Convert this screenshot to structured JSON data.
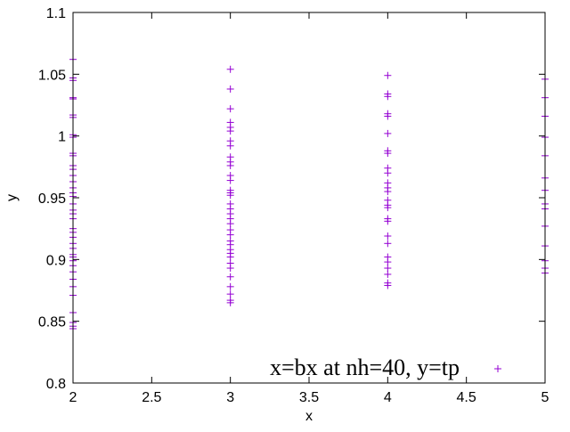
{
  "chart_data": {
    "type": "scatter",
    "title": "",
    "xlabel": "x",
    "ylabel": "y",
    "xlim": [
      2,
      5
    ],
    "ylim": [
      0.8,
      1.1
    ],
    "xticks": [
      2,
      2.5,
      3,
      3.5,
      4,
      4.5,
      5
    ],
    "xtick_labels": [
      "2",
      "2.5",
      "3",
      "3.5",
      "4",
      "4.5",
      "5"
    ],
    "yticks": [
      0.8,
      0.85,
      0.9,
      0.95,
      1,
      1.05,
      1.1
    ],
    "ytick_labels": [
      "0.8",
      "0.85",
      "0.9",
      "0.95",
      "1",
      "1.05",
      "1.1"
    ],
    "grid": false,
    "legend_position": "bottom-right",
    "marker": "plus",
    "color": "#9400d3",
    "series": [
      {
        "name": "x=bx at nh=40, y=tp",
        "points": [
          [
            2,
            1.062
          ],
          [
            2,
            1.047
          ],
          [
            2,
            1.045
          ],
          [
            2,
            1.031
          ],
          [
            2,
            1.03
          ],
          [
            2,
            1.017
          ],
          [
            2,
            1.015
          ],
          [
            2,
            1.001
          ],
          [
            2,
            0.999
          ],
          [
            2,
            0.986
          ],
          [
            2,
            0.984
          ],
          [
            2,
            0.976
          ],
          [
            2,
            0.973
          ],
          [
            2,
            0.968
          ],
          [
            2,
            0.963
          ],
          [
            2,
            0.958
          ],
          [
            2,
            0.954
          ],
          [
            2,
            0.951
          ],
          [
            2,
            0.945
          ],
          [
            2,
            0.94
          ],
          [
            2,
            0.937
          ],
          [
            2,
            0.933
          ],
          [
            2,
            0.925
          ],
          [
            2,
            0.922
          ],
          [
            2,
            0.918
          ],
          [
            2,
            0.913
          ],
          [
            2,
            0.909
          ],
          [
            2,
            0.904
          ],
          [
            2,
            0.902
          ],
          [
            2,
            0.899
          ],
          [
            2,
            0.895
          ],
          [
            2,
            0.89
          ],
          [
            2,
            0.884
          ],
          [
            2,
            0.878
          ],
          [
            2,
            0.871
          ],
          [
            2,
            0.857
          ],
          [
            2,
            0.849
          ],
          [
            2,
            0.846
          ],
          [
            2,
            0.844
          ],
          [
            3,
            1.054
          ],
          [
            3,
            1.038
          ],
          [
            3,
            1.022
          ],
          [
            3,
            1.011
          ],
          [
            3,
            1.007
          ],
          [
            3,
            1.004
          ],
          [
            3,
            0.996
          ],
          [
            3,
            0.992
          ],
          [
            3,
            0.983
          ],
          [
            3,
            0.979
          ],
          [
            3,
            0.976
          ],
          [
            3,
            0.968
          ],
          [
            3,
            0.964
          ],
          [
            3,
            0.956
          ],
          [
            3,
            0.954
          ],
          [
            3,
            0.952
          ],
          [
            3,
            0.945
          ],
          [
            3,
            0.941
          ],
          [
            3,
            0.937
          ],
          [
            3,
            0.933
          ],
          [
            3,
            0.929
          ],
          [
            3,
            0.924
          ],
          [
            3,
            0.92
          ],
          [
            3,
            0.915
          ],
          [
            3,
            0.912
          ],
          [
            3,
            0.908
          ],
          [
            3,
            0.905
          ],
          [
            3,
            0.902
          ],
          [
            3,
            0.897
          ],
          [
            3,
            0.893
          ],
          [
            3,
            0.886
          ],
          [
            3,
            0.878
          ],
          [
            3,
            0.872
          ],
          [
            3,
            0.867
          ],
          [
            3,
            0.865
          ],
          [
            4,
            1.049
          ],
          [
            4,
            1.034
          ],
          [
            4,
            1.032
          ],
          [
            4,
            1.018
          ],
          [
            4,
            1.016
          ],
          [
            4,
            1.002
          ],
          [
            4,
            0.988
          ],
          [
            4,
            0.986
          ],
          [
            4,
            0.974
          ],
          [
            4,
            0.97
          ],
          [
            4,
            0.962
          ],
          [
            4,
            0.958
          ],
          [
            4,
            0.955
          ],
          [
            4,
            0.948
          ],
          [
            4,
            0.944
          ],
          [
            4,
            0.942
          ],
          [
            4,
            0.933
          ],
          [
            4,
            0.931
          ],
          [
            4,
            0.919
          ],
          [
            4,
            0.913
          ],
          [
            4,
            0.902
          ],
          [
            4,
            0.898
          ],
          [
            4,
            0.893
          ],
          [
            4,
            0.888
          ],
          [
            4,
            0.881
          ],
          [
            4,
            0.879
          ],
          [
            5,
            1.046
          ],
          [
            5,
            1.031
          ],
          [
            5,
            1.016
          ],
          [
            5,
            0.999
          ],
          [
            5,
            0.984
          ],
          [
            5,
            0.966
          ],
          [
            5,
            0.956
          ],
          [
            5,
            0.945
          ],
          [
            5,
            0.941
          ],
          [
            5,
            0.927
          ],
          [
            5,
            0.911
          ],
          [
            5,
            0.899
          ],
          [
            5,
            0.893
          ],
          [
            5,
            0.889
          ]
        ]
      }
    ]
  }
}
